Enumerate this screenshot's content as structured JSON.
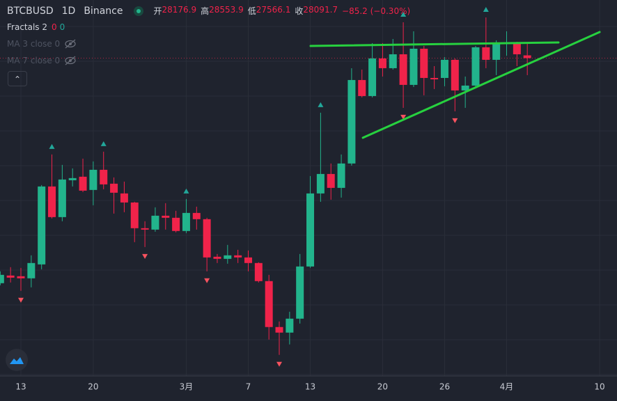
{
  "header": {
    "symbol": "BTCBUSD",
    "interval": "1D",
    "exchange": "Binance",
    "fields": [
      {
        "label": "开",
        "value": 28176.9
      },
      {
        "label": "高",
        "value": 28553.9
      },
      {
        "label": "低",
        "value": 27566.1
      },
      {
        "label": "收",
        "value": 28091.7
      }
    ],
    "change": "−85.2 (−0.30%)"
  },
  "legend": {
    "fractals": "Fractals 2",
    "fractals_values": [
      "0",
      "0"
    ],
    "ma": [
      "MA 3 close 0",
      "MA 7 close 0"
    ]
  },
  "chart_data": {
    "type": "candlestick",
    "x": [
      -2,
      -1,
      0,
      1,
      2,
      3,
      4,
      5,
      6,
      7,
      8,
      9,
      10,
      11,
      12,
      13,
      14,
      15,
      16,
      17,
      18,
      19,
      20,
      21,
      22,
      23,
      24,
      25,
      26,
      27,
      28,
      29,
      30,
      31,
      32,
      33,
      34,
      35,
      36,
      37,
      38,
      39,
      40,
      41,
      42,
      43,
      44,
      45,
      46,
      47,
      48,
      49
    ],
    "open": [
      21147,
      21383,
      21361,
      21297,
      21726,
      24131,
      23186,
      24324,
      24432,
      24024,
      24646,
      24217,
      23916,
      23637,
      22843,
      22800,
      23229,
      23165,
      22757,
      23315,
      23122,
      21963,
      21898,
      22006,
      21941,
      21769,
      21211,
      19794,
      19622,
      20052,
      21662,
      23916,
      24517,
      24088,
      24840,
      27416,
      26922,
      28082,
      27781,
      28210,
      27266,
      28382,
      27480,
      27480,
      28039,
      27094,
      27244,
      28425,
      28039,
      28554,
      28554,
      28176.9
    ],
    "high": [
      21512,
      21641,
      21619,
      22006,
      24174,
      25119,
      24797,
      24689,
      24990,
      24904,
      25205,
      24410,
      24281,
      23659,
      23058,
      23487,
      23616,
      23380,
      23745,
      23508,
      23165,
      22048,
      22328,
      22177,
      22156,
      21791,
      21404,
      19966,
      20266,
      22048,
      24453,
      26407,
      24840,
      25119,
      27781,
      27738,
      28554,
      28554,
      28683,
      29198,
      28919,
      28468,
      27845,
      28124,
      28082,
      27523,
      28468,
      29348,
      28640,
      28919,
      28597,
      28553.9
    ],
    "low": [
      21082,
      21168,
      20911,
      21018,
      21576,
      23143,
      23058,
      24131,
      23959,
      23551,
      24045,
      23294,
      23337,
      22413,
      22263,
      22735,
      22800,
      22714,
      22693,
      22800,
      21512,
      21769,
      21748,
      21769,
      21512,
      21168,
      19408,
      18935,
      19257,
      19901,
      21619,
      23659,
      23723,
      23788,
      24775,
      26879,
      26879,
      27523,
      27738,
      26557,
      27201,
      26944,
      27137,
      27223,
      26450,
      26557,
      27201,
      27781,
      27566,
      28167,
      27845,
      27566.1
    ],
    "close": [
      21404,
      21318,
      21297,
      21769,
      24131,
      23186,
      24346,
      24389,
      24002,
      24646,
      24195,
      23938,
      23637,
      22843,
      22800,
      23229,
      23165,
      22757,
      23315,
      23122,
      21941,
      21898,
      22006,
      21941,
      21769,
      21211,
      19794,
      19622,
      20052,
      21662,
      23916,
      24517,
      24088,
      24840,
      27416,
      26922,
      28082,
      27781,
      28210,
      27266,
      28382,
      27480,
      27437,
      28039,
      27094,
      27244,
      28425,
      28039,
      28554,
      28575,
      28210,
      28091.7
    ],
    "up_color": "#22b48c",
    "down_color": "#f0234a",
    "xlim": [
      -2.0216,
      57.68
    ],
    "ylim": [
      18285,
      29885
    ],
    "xticks": [
      {
        "value": 0,
        "label": "13"
      },
      {
        "value": 7,
        "label": "20"
      },
      {
        "value": 16,
        "label": "3月"
      },
      {
        "value": 22,
        "label": "7"
      },
      {
        "value": 28,
        "label": "13"
      },
      {
        "value": 35,
        "label": "20"
      },
      {
        "value": 41,
        "label": "26"
      },
      {
        "value": 47,
        "label": "4月"
      },
      {
        "value": 56,
        "label": "10"
      }
    ],
    "fractals_up": [
      3,
      8,
      16,
      29,
      37,
      45
    ],
    "fractals_down": [
      0,
      12,
      18,
      25,
      37,
      42
    ],
    "trendlines": [
      {
        "x": [
          28.03,
          52.02
        ],
        "y": [
          28468,
          28575
        ]
      },
      {
        "x": [
          33.09,
          56.0
        ],
        "y": [
          25634,
          28897
        ]
      }
    ],
    "trendline_color": "#27d13f",
    "grid": true
  }
}
